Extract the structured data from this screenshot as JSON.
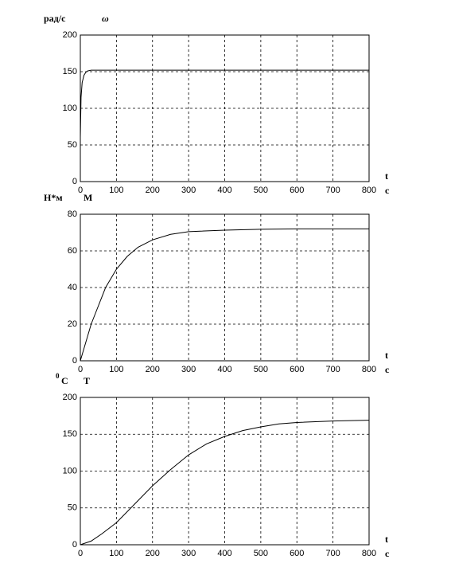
{
  "chart_data": [
    {
      "type": "line",
      "ylabel_unit": "рад/с",
      "ylabel": "ω",
      "xlabel": "t",
      "xunit": "c",
      "x": [
        0,
        2,
        5,
        10,
        15,
        20,
        30,
        50,
        100,
        200,
        300,
        400,
        500,
        600,
        700,
        800
      ],
      "series": [
        {
          "color": "#000000",
          "values": [
            60,
            115,
            135,
            145,
            149,
            151,
            152,
            152,
            152,
            152,
            152,
            152,
            152,
            152,
            152,
            152
          ]
        }
      ],
      "xlim": [
        0,
        800
      ],
      "xticks": [
        0,
        100,
        200,
        300,
        400,
        500,
        600,
        700,
        800
      ],
      "ylim": [
        0,
        200
      ],
      "yticks": [
        0,
        50,
        100,
        150,
        200
      ],
      "grid": true
    },
    {
      "type": "line",
      "ylabel_unit": "Н*м",
      "ylabel": "M",
      "xlabel": "t",
      "xunit": "c",
      "x": [
        0,
        15,
        30,
        50,
        70,
        100,
        130,
        160,
        200,
        250,
        300,
        400,
        500,
        600,
        700,
        800
      ],
      "series": [
        {
          "color": "#000000",
          "values": [
            0,
            10,
            20,
            30,
            40,
            50,
            57,
            62,
            66,
            69,
            70.5,
            71.3,
            71.8,
            72,
            72,
            72
          ]
        }
      ],
      "xlim": [
        0,
        800
      ],
      "xticks": [
        0,
        100,
        200,
        300,
        400,
        500,
        600,
        700,
        800
      ],
      "ylim": [
        0,
        80
      ],
      "yticks": [
        0,
        20,
        40,
        60,
        80
      ],
      "grid": true
    },
    {
      "type": "line",
      "ylabel_unit_sup": "0",
      "ylabel_unit": "C",
      "ylabel": "T",
      "xlabel": "t",
      "xunit": "c",
      "x": [
        0,
        30,
        60,
        100,
        150,
        200,
        250,
        300,
        350,
        400,
        450,
        500,
        550,
        600,
        700,
        800
      ],
      "series": [
        {
          "color": "#000000",
          "values": [
            0,
            5,
            15,
            30,
            55,
            80,
            102,
            122,
            137,
            147,
            155,
            160,
            164,
            166,
            168,
            169
          ]
        }
      ],
      "xlim": [
        0,
        800
      ],
      "xticks": [
        0,
        100,
        200,
        300,
        400,
        500,
        600,
        700,
        800
      ],
      "ylim": [
        0,
        200
      ],
      "yticks": [
        0,
        50,
        100,
        150,
        200
      ],
      "grid": true
    }
  ]
}
